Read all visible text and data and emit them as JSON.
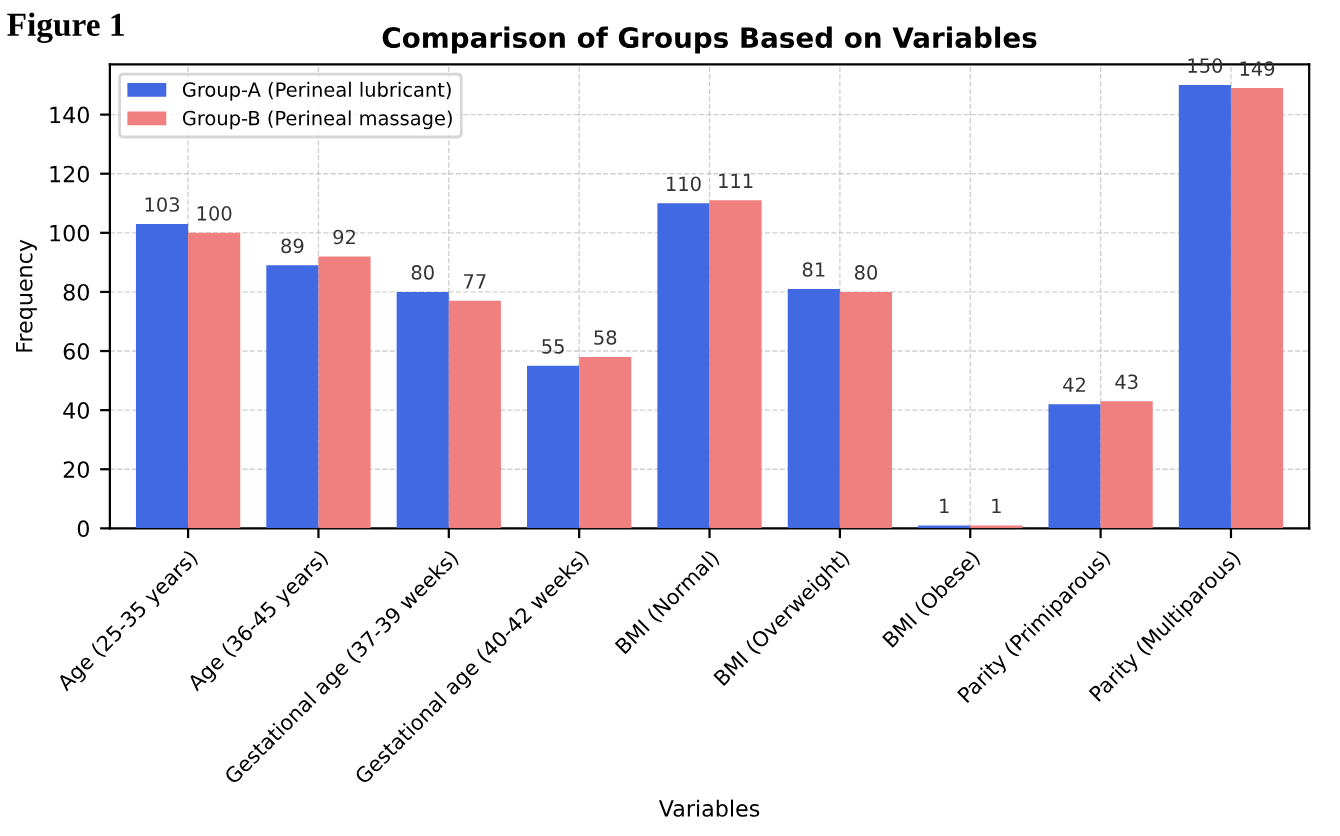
{
  "chart_data": {
    "type": "bar",
    "title": "Comparison of Groups Based on Variables",
    "xlabel": "Variables",
    "ylabel": "Frequency",
    "categories": [
      "Age (25-35 years)",
      "Age (36-45 years)",
      "Gestational age (37-39 weeks)",
      "Gestational age (40-42 weeks)",
      "BMI (Normal)",
      "BMI (Overweight)",
      "BMI (Obese)",
      "Parity (Primiparous)",
      "Parity (Multiparous)"
    ],
    "series": [
      {
        "name": "Group-A (Perineal lubricant)",
        "color": "#4169e1",
        "values": [
          103,
          89,
          80,
          55,
          110,
          81,
          1,
          42,
          150
        ]
      },
      {
        "name": "Group-B (Perineal massage)",
        "color": "#f08080",
        "values": [
          100,
          92,
          77,
          58,
          111,
          80,
          1,
          43,
          149
        ]
      }
    ],
    "ylim": [
      0,
      157
    ],
    "yticks": [
      0,
      20,
      40,
      60,
      80,
      100,
      120,
      140
    ],
    "grid": true,
    "legend": "top left",
    "data_labels": true,
    "annotations": [
      "Figure 1"
    ]
  }
}
